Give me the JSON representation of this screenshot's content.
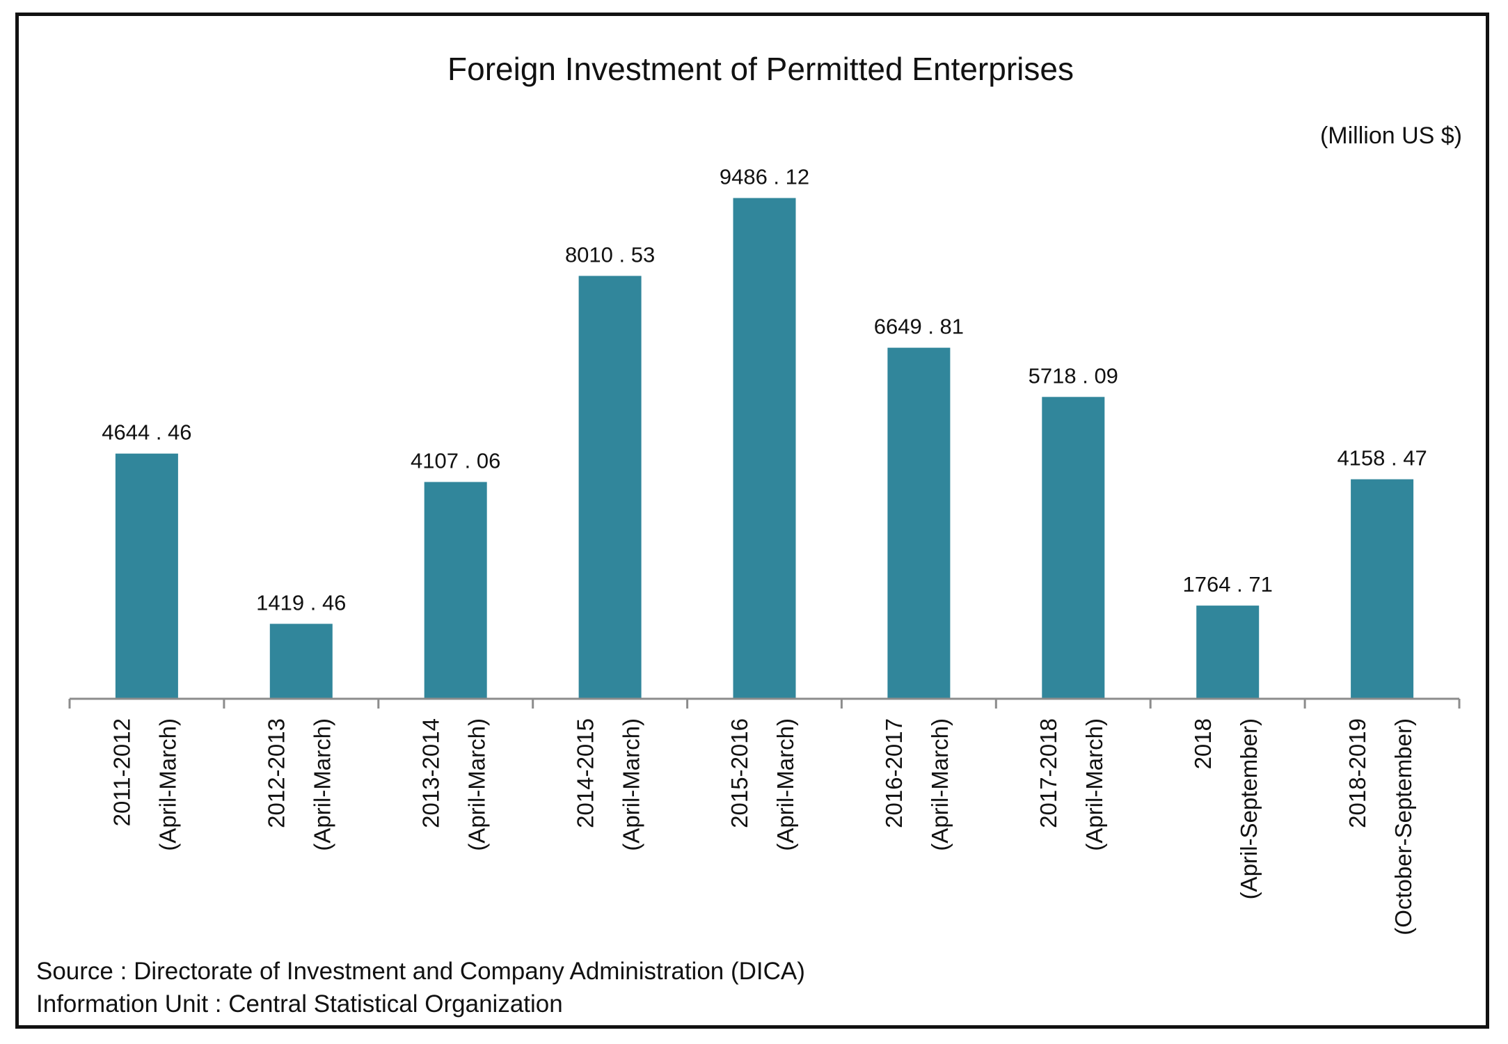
{
  "chart_data": {
    "type": "bar",
    "title": "Foreign Investment of Permitted Enterprises",
    "unit_label": "(Million US $)",
    "xlabel": "",
    "ylabel": "",
    "ylim": [
      0,
      10000
    ],
    "grid": false,
    "legend": "none",
    "bar_color": "#31869B",
    "categories": [
      [
        "2011-2012",
        "(April-March)"
      ],
      [
        "2012-2013",
        "(April-March)"
      ],
      [
        "2013-2014",
        "(April-March)"
      ],
      [
        "2014-2015",
        "(April-March)"
      ],
      [
        "2015-2016",
        "(April-March)"
      ],
      [
        "2016-2017",
        "(April-March)"
      ],
      [
        "2017-2018",
        "(April-March)"
      ],
      [
        "2018",
        "(April-September)"
      ],
      [
        "2018-2019",
        "(October-September)"
      ]
    ],
    "values": [
      4644.46,
      1419.46,
      4107.06,
      8010.53,
      9486.12,
      6649.81,
      5718.09,
      1764.71,
      4158.47
    ],
    "data_labels": [
      "4644 . 46",
      "1419 . 46",
      "4107 . 06",
      "8010 . 53",
      "9486 . 12",
      "6649 . 81",
      "5718 . 09",
      "1764 . 71",
      "4158 . 47"
    ]
  },
  "footer": {
    "source": "Source : Directorate of Investment and Company Administration (DICA)",
    "info_unit": "Information Unit : Central Statistical Organization"
  }
}
